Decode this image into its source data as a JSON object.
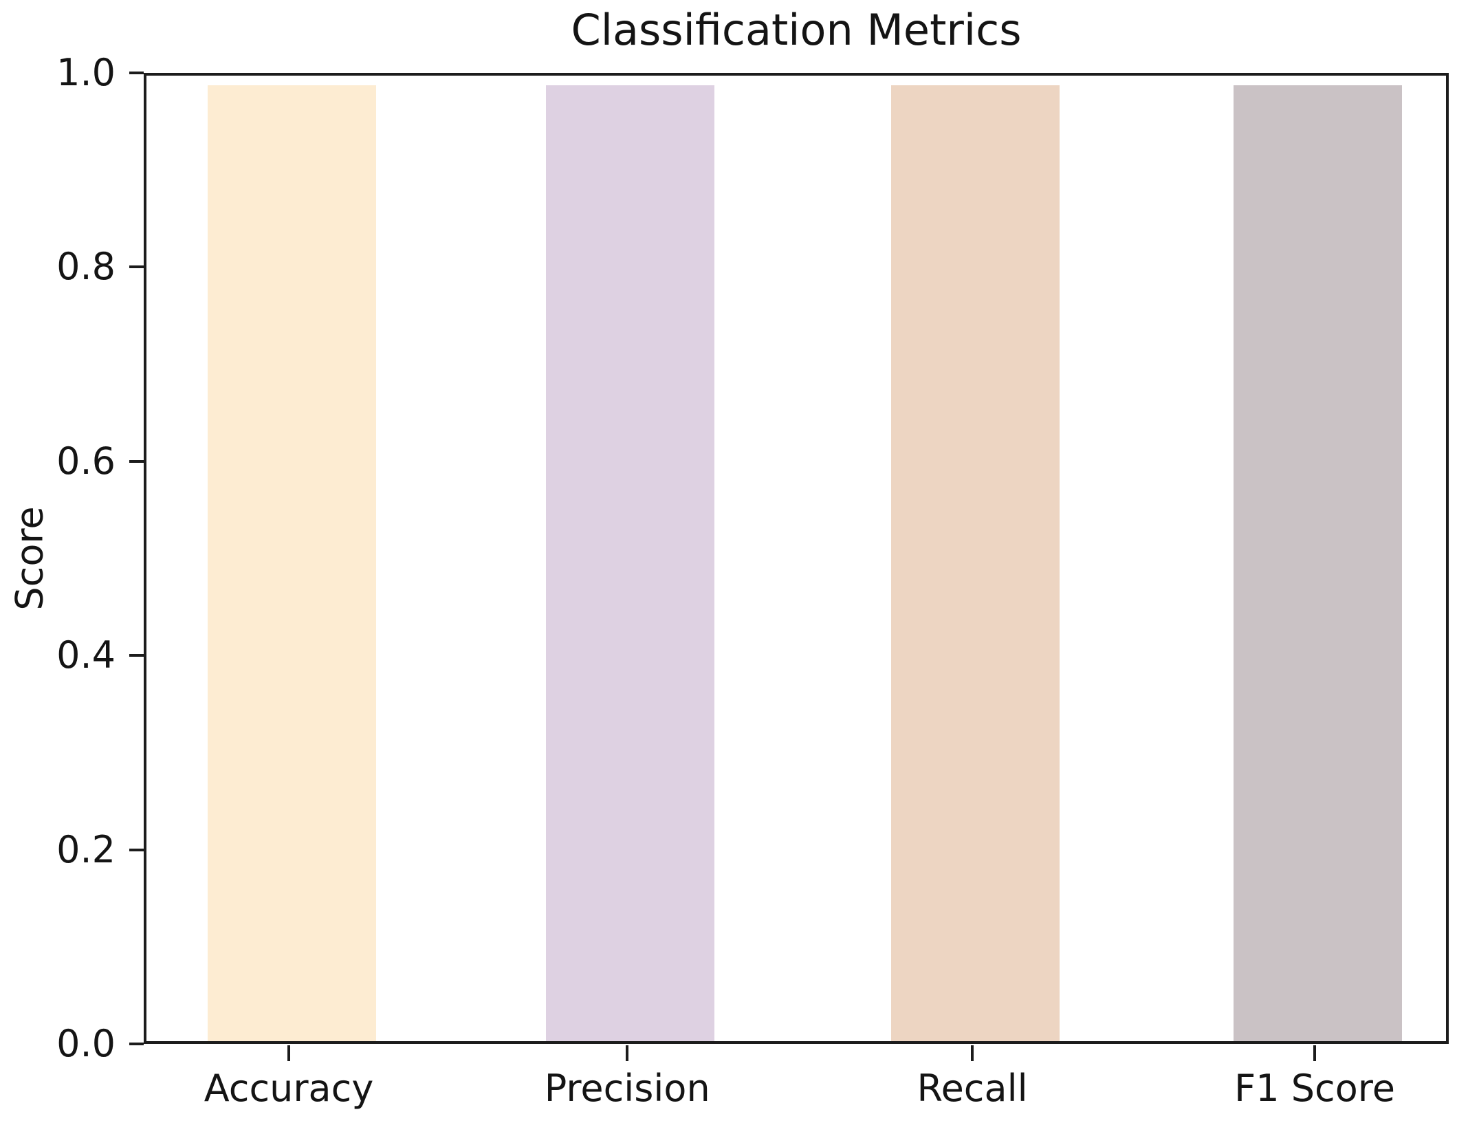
{
  "chart_data": {
    "type": "bar",
    "title": "Classification Metrics",
    "xlabel": "",
    "ylabel": "Score",
    "categories": [
      "Accuracy",
      "Precision",
      "Recall",
      "F1 Score"
    ],
    "values": [
      0.99,
      0.99,
      0.99,
      0.99
    ],
    "bar_colors": [
      "#fdecd2",
      "#ded1e2",
      "#edd5c2",
      "#cac2c5"
    ],
    "ylim": [
      0.0,
      1.0
    ],
    "yticks": [
      0.0,
      0.2,
      0.4,
      0.6,
      0.8,
      1.0
    ],
    "ytick_labels": [
      "0.0",
      "0.2",
      "0.4",
      "0.6",
      "0.8",
      "1.0"
    ],
    "grid": false,
    "legend": "none",
    "background_color": "#ffffff",
    "spine_color": "#1c1c1c",
    "text_color": "#141414"
  }
}
